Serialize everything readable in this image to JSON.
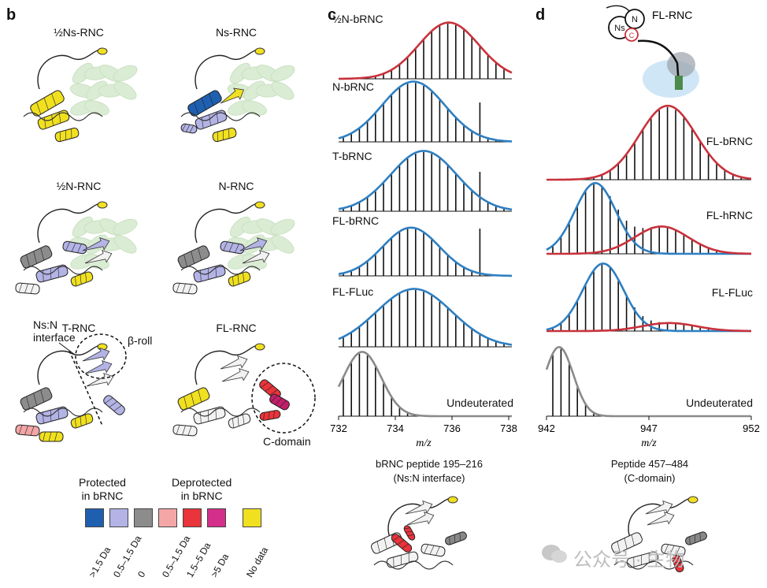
{
  "panel_b": {
    "letter": "b",
    "structures": [
      "½Ns-RNC",
      "Ns-RNC",
      "½N-RNC",
      "N-RNC",
      "T-RNC",
      "FL-RNC"
    ],
    "annotations": {
      "interface": "Ns:N\ninterface",
      "beta_roll": "β-roll",
      "c_domain": "C-domain"
    },
    "legend": {
      "protected": "Protected\nin bRNC",
      "deprotected": "Deprotected\nin bRNC",
      "swatches": [
        {
          "color": "#1f5fb0",
          "label": ">1.5 Da"
        },
        {
          "color": "#b3b3e6",
          "label": "0.5–1.5 Da"
        },
        {
          "color": "#8c8c8c",
          "label": "0"
        },
        {
          "color": "#f4a6a6",
          "label": "0.5–1.5 Da"
        },
        {
          "color": "#e8343a",
          "label": "1.5–5 Da"
        },
        {
          "color": "#d42f8a",
          "label": ">5 Da"
        },
        {
          "color": "#f0e020",
          "label": "No data"
        }
      ]
    }
  },
  "panel_c": {
    "letter": "c",
    "traces": [
      "½N-bRNC",
      "N-bRNC",
      "T-bRNC",
      "FL-bRNC",
      "FL-FLuc",
      "Undeuterated"
    ],
    "x_ticks": [
      "732",
      "734",
      "736",
      "738"
    ],
    "x_label": "m/z",
    "caption": "bRNC peptide 195–216\n(Ns:N interface)"
  },
  "panel_d": {
    "letter": "d",
    "schematic_label": "FL-RNC",
    "schematic_domains": [
      "Ns",
      "N",
      "C"
    ],
    "traces": [
      "FL-bRNC",
      "FL-hRNC",
      "FL-FLuc",
      "Undeuterated"
    ],
    "x_ticks": [
      "942",
      "947",
      "952"
    ],
    "x_label": "m/z",
    "caption": "Peptide 457–484\n(C-domain)"
  },
  "colors": {
    "red": "#c8323c",
    "blue": "#2e7fc1",
    "grey": "#8a8a8a",
    "green_bg": "#cfe6c6"
  },
  "watermark": "公众号 · 生物"
}
